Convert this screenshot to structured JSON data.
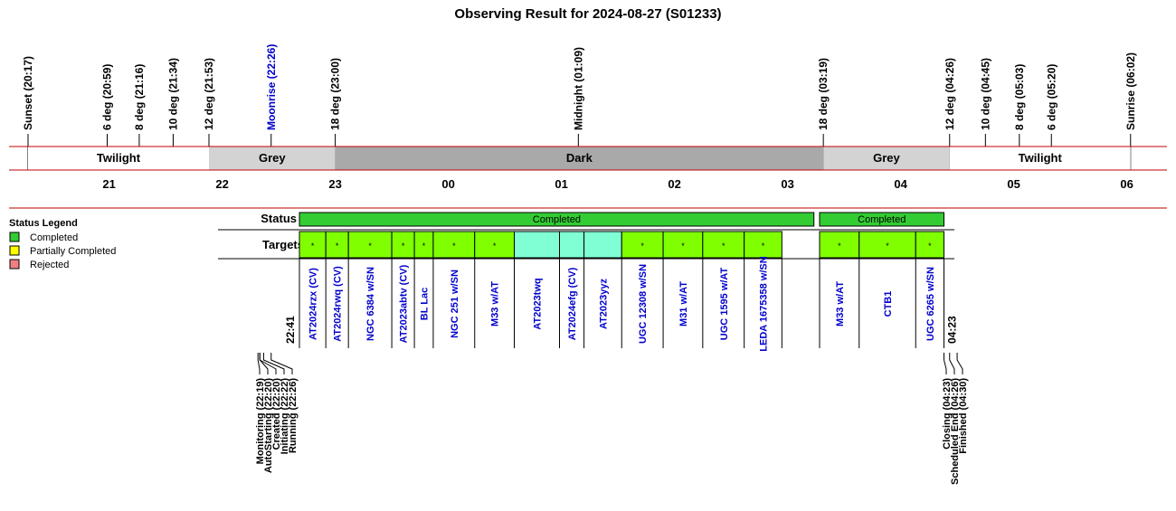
{
  "chart_data": {
    "type": "timeline",
    "title": "Observing Result for 2024-08-27 (S01233)",
    "time_axis": {
      "start": "20:05",
      "end": "06:20",
      "hour_labels": [
        {
          "time": "21:00",
          "label": "21"
        },
        {
          "time": "22:00",
          "label": "22"
        },
        {
          "time": "23:00",
          "label": "23"
        },
        {
          "time": "24:00",
          "label": "00"
        },
        {
          "time": "25:00",
          "label": "01"
        },
        {
          "time": "26:00",
          "label": "02"
        },
        {
          "time": "27:00",
          "label": "03"
        },
        {
          "time": "28:00",
          "label": "04"
        },
        {
          "time": "29:00",
          "label": "05"
        },
        {
          "time": "30:00",
          "label": "06"
        }
      ]
    },
    "sky_events": [
      {
        "label": "Sunset (20:17)",
        "time": "20:17",
        "color": "#000000"
      },
      {
        "label": "6 deg (20:59)",
        "time": "20:59",
        "color": "#000000"
      },
      {
        "label": "8 deg (21:16)",
        "time": "21:16",
        "color": "#000000"
      },
      {
        "label": "10 deg (21:34)",
        "time": "21:34",
        "color": "#000000"
      },
      {
        "label": "12 deg (21:53)",
        "time": "21:53",
        "color": "#000000"
      },
      {
        "label": "Moonrise (22:26)",
        "time": "22:26",
        "color": "#0000cc"
      },
      {
        "label": "18 deg (23:00)",
        "time": "23:00",
        "color": "#000000"
      },
      {
        "label": "Midnight (01:09)",
        "time": "25:09",
        "color": "#000000"
      },
      {
        "label": "18 deg (03:19)",
        "time": "27:19",
        "color": "#000000"
      },
      {
        "label": "12 deg (04:26)",
        "time": "28:26",
        "color": "#000000"
      },
      {
        "label": "10 deg (04:45)",
        "time": "28:45",
        "color": "#000000"
      },
      {
        "label": "8 deg (05:03)",
        "time": "29:03",
        "color": "#000000"
      },
      {
        "label": "6 deg (05:20)",
        "time": "29:20",
        "color": "#000000"
      },
      {
        "label": "Sunrise (06:02)",
        "time": "30:02",
        "color": "#000000"
      }
    ],
    "sky_bands": [
      {
        "label": "Twilight",
        "start": "20:17",
        "end": "21:53",
        "color": "#ffffff"
      },
      {
        "label": "Grey",
        "start": "21:53",
        "end": "23:00",
        "color": "#d3d3d3"
      },
      {
        "label": "Dark",
        "start": "23:00",
        "end": "27:19",
        "color": "#a9a9a9"
      },
      {
        "label": "Grey",
        "start": "27:19",
        "end": "28:26",
        "color": "#d3d3d3"
      },
      {
        "label": "Twilight",
        "start": "28:26",
        "end": "30:02",
        "color": "#ffffff"
      }
    ],
    "status_label": "Status",
    "targets_label": "Targets",
    "status_bars": [
      {
        "label": "Completed",
        "start": "22:41",
        "end": "27:14",
        "color": "#33cc33"
      },
      {
        "label": "Completed",
        "start": "27:17",
        "end": "28:23",
        "color": "#33cc33"
      }
    ],
    "targets": [
      {
        "name": "AT2024rzx (CV)",
        "start": "22:41",
        "end": "22:55",
        "color": "#80ff00",
        "mark": "*"
      },
      {
        "name": "AT2024rwq (CV)",
        "start": "22:55",
        "end": "23:07",
        "color": "#80ff00",
        "mark": "*"
      },
      {
        "name": "NGC 6384 w/SN",
        "start": "23:07",
        "end": "23:30",
        "color": "#80ff00",
        "mark": "*"
      },
      {
        "name": "AT2023abtv (CV)",
        "start": "23:30",
        "end": "23:42",
        "color": "#80ff00",
        "mark": "*"
      },
      {
        "name": "BL Lac",
        "start": "23:42",
        "end": "23:52",
        "color": "#80ff00",
        "mark": "*"
      },
      {
        "name": "NGC 251 w/SN",
        "start": "23:52",
        "end": "24:14",
        "color": "#80ff00",
        "mark": "*"
      },
      {
        "name": "M33 w/AT",
        "start": "24:14",
        "end": "24:35",
        "color": "#80ff00",
        "mark": "*"
      },
      {
        "name": "AT2023twq",
        "start": "24:35",
        "end": "24:59",
        "color": "#80ffd4",
        "mark": ""
      },
      {
        "name": "AT2024efg (CV)",
        "start": "24:59",
        "end": "25:12",
        "color": "#80ffd4",
        "mark": ""
      },
      {
        "name": "AT2023yyz",
        "start": "25:12",
        "end": "25:32",
        "color": "#80ffd4",
        "mark": ""
      },
      {
        "name": "UGC 12308 w/SN",
        "start": "25:32",
        "end": "25:54",
        "color": "#80ff00",
        "mark": "*"
      },
      {
        "name": "M31 w/AT",
        "start": "25:54",
        "end": "26:15",
        "color": "#80ff00",
        "mark": "*"
      },
      {
        "name": "UGC 1595 w/AT",
        "start": "26:15",
        "end": "26:37",
        "color": "#80ff00",
        "mark": "*"
      },
      {
        "name": "LEDA 1675358 w/SN",
        "start": "26:37",
        "end": "26:57",
        "color": "#80ff00",
        "mark": "*"
      },
      {
        "name": "M33 w/AT",
        "start": "27:17",
        "end": "27:38",
        "color": "#80ff00",
        "mark": "*"
      },
      {
        "name": "CTB1",
        "start": "27:38",
        "end": "28:08",
        "color": "#80ff00",
        "mark": "*"
      },
      {
        "name": "UGC 6265 w/SN",
        "start": "28:08",
        "end": "28:23",
        "color": "#80ff00",
        "mark": "*"
      }
    ],
    "run_start_label": "22:41",
    "run_end_label": "04:23",
    "pre_events": [
      {
        "label": "Monitoring (22:19)",
        "time": "22:19"
      },
      {
        "label": "AutoStarting (22:20)",
        "time": "22:20"
      },
      {
        "label": "Created (22:20)",
        "time": "22:20"
      },
      {
        "label": "Initiating (22:22)",
        "time": "22:22"
      },
      {
        "label": "Running (22:26)",
        "time": "22:26"
      }
    ],
    "post_events": [
      {
        "label": "Closing (04:23)",
        "time": "28:23"
      },
      {
        "label": "Scheduled End (04:26)",
        "time": "28:26"
      },
      {
        "label": "Finished (04:30)",
        "time": "28:30"
      }
    ],
    "legend": {
      "title": "Status Legend",
      "placement": "left",
      "items": [
        {
          "label": "Completed",
          "color": "#33cc33"
        },
        {
          "label": "Partially Completed",
          "color": "#ffff00"
        },
        {
          "label": "Rejected",
          "color": "#f08080"
        }
      ]
    }
  }
}
